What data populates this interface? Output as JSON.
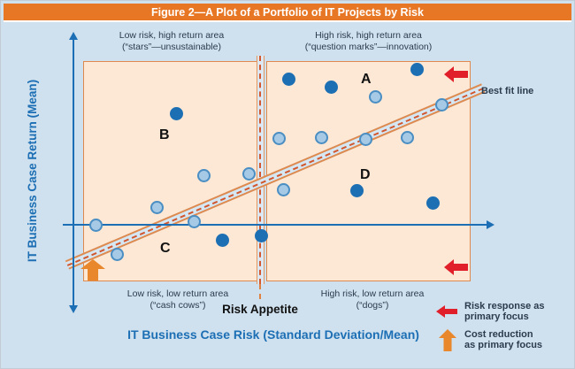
{
  "title": "Figure 2—A Plot of a Portfolio of IT Projects by Risk",
  "axes": {
    "y_label": "IT Business Case Return (Mean)",
    "x_label": "IT Business Case Risk (Standard Deviation/Mean)"
  },
  "area_labels": {
    "top_left": {
      "line1": "Low risk, high return area",
      "line2": "(“stars”—unsustainable)"
    },
    "top_right": {
      "line1": "High risk, high return area",
      "line2": "(“question marks”—innovation)"
    },
    "bottom_left": {
      "line1": "Low risk, low return area",
      "line2": "(“cash cows”)"
    },
    "bottom_right": {
      "line1": "High risk, low return area",
      "line2": "(“dogs”)"
    }
  },
  "quadrant_labels": {
    "a": "A",
    "b": "B",
    "c": "C",
    "d": "D"
  },
  "risk_appetite_label": "Risk Appetite",
  "best_fit_label": "Best fit line",
  "legend": [
    {
      "icon": "red-left-arrow",
      "line1": "Risk response as",
      "line2": "primary focus"
    },
    {
      "icon": "orange-up-arrow",
      "line1": "Cost reduction",
      "line2": "as primary focus"
    }
  ],
  "colors": {
    "title_bar": "#E77724",
    "background": "#CFE0EE",
    "box_fill": "#FCE8D5",
    "box_border": "#DE8A4F",
    "axis_blue": "#1C6FB4",
    "dark_point": "#1D6FB4",
    "light_point_fill": "#A6C9E5",
    "light_point_border": "#4A8EC3",
    "red_arrow": "#E11F2A",
    "orange_arrow": "#E8872B",
    "fit_band_fill": "#D6E7F4",
    "dash_line": "#D2572E",
    "label_text": "#2B3C4F"
  },
  "chart_data": {
    "type": "scatter",
    "title": "Figure 2—A Plot of a Portfolio of IT Projects by Risk",
    "xlabel": "IT Business Case Risk (Standard Deviation/Mean)",
    "ylabel": "IT Business Case Return (Mean)",
    "units": "screen-px",
    "series": [
      {
        "name": "dark-blue-projects",
        "color": "#1D6FB4",
        "points": [
          [
            198,
            127
          ],
          [
            325,
            88
          ],
          [
            373,
            97
          ],
          [
            470,
            77
          ],
          [
            402,
            214
          ],
          [
            488,
            228
          ],
          [
            250,
            270
          ],
          [
            294,
            265
          ]
        ]
      },
      {
        "name": "light-blue-projects",
        "color": "#A6C9E5",
        "points": [
          [
            107,
            253
          ],
          [
            131,
            286
          ],
          [
            176,
            233
          ],
          [
            218,
            249
          ],
          [
            229,
            197
          ],
          [
            280,
            195
          ],
          [
            314,
            155
          ],
          [
            319,
            213
          ],
          [
            362,
            154
          ],
          [
            412,
            156
          ],
          [
            423,
            108
          ],
          [
            459,
            154
          ],
          [
            498,
            117
          ]
        ]
      }
    ],
    "best_fit_line": {
      "from": [
        75,
        298
      ],
      "to": [
        545,
        98
      ]
    },
    "risk_appetite_x": 293,
    "quadrants": {
      "A": "high risk, high return (question marks—innovation)",
      "B": "low risk, high return (stars—unsustainable)",
      "C": "low risk, low return (cash cows)",
      "D": "high risk, low return (dogs)"
    }
  }
}
